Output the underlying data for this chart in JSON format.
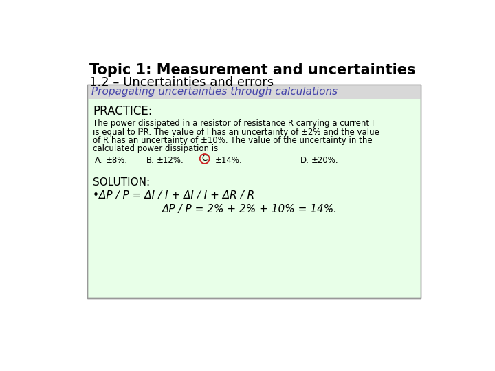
{
  "title_line1": "Topic 1: Measurement and uncertainties",
  "title_line2": "1.2 – Uncertainties and errors",
  "subtitle": "Propagating uncertainties through calculations",
  "subtitle_color": "#4444aa",
  "practice_label": "PRACTICE:",
  "body_line1": "The power dissipated in a resistor of resistance R carrying a current I",
  "body_line2": "is equal to I²R. The value of I has an uncertainty of ±2% and the value",
  "body_line3": "of R has an uncertainty of ±10%. The value of the uncertainty in the",
  "body_line4": "calculated power dissipation is",
  "opt_a": "A.",
  "opt_a_val": "±8%.",
  "opt_b": "B.",
  "opt_b_val": "±12%.",
  "opt_c": "C",
  "opt_c_val": "±14%.",
  "opt_d": "D.",
  "opt_d_val": "±20%.",
  "solution_label": "SOLUTION:",
  "solution_eq1": "•ΔP / P = ΔI / I + ΔI / I + ΔR / R",
  "solution_eq2": "ΔP / P = 2% + 2% + 10% = 14%.",
  "box_bg_color": "#e8ffe8",
  "box_border_color": "#999999",
  "header_bg_color": "#d8d8d8",
  "background_color": "#ffffff",
  "circle_color": "#cc2222",
  "text_color": "#000000",
  "title1_fontsize": 15,
  "title2_fontsize": 13,
  "subtitle_fontsize": 11,
  "practice_fontsize": 12,
  "body_fontsize": 8.5,
  "solution_fontsize": 11
}
